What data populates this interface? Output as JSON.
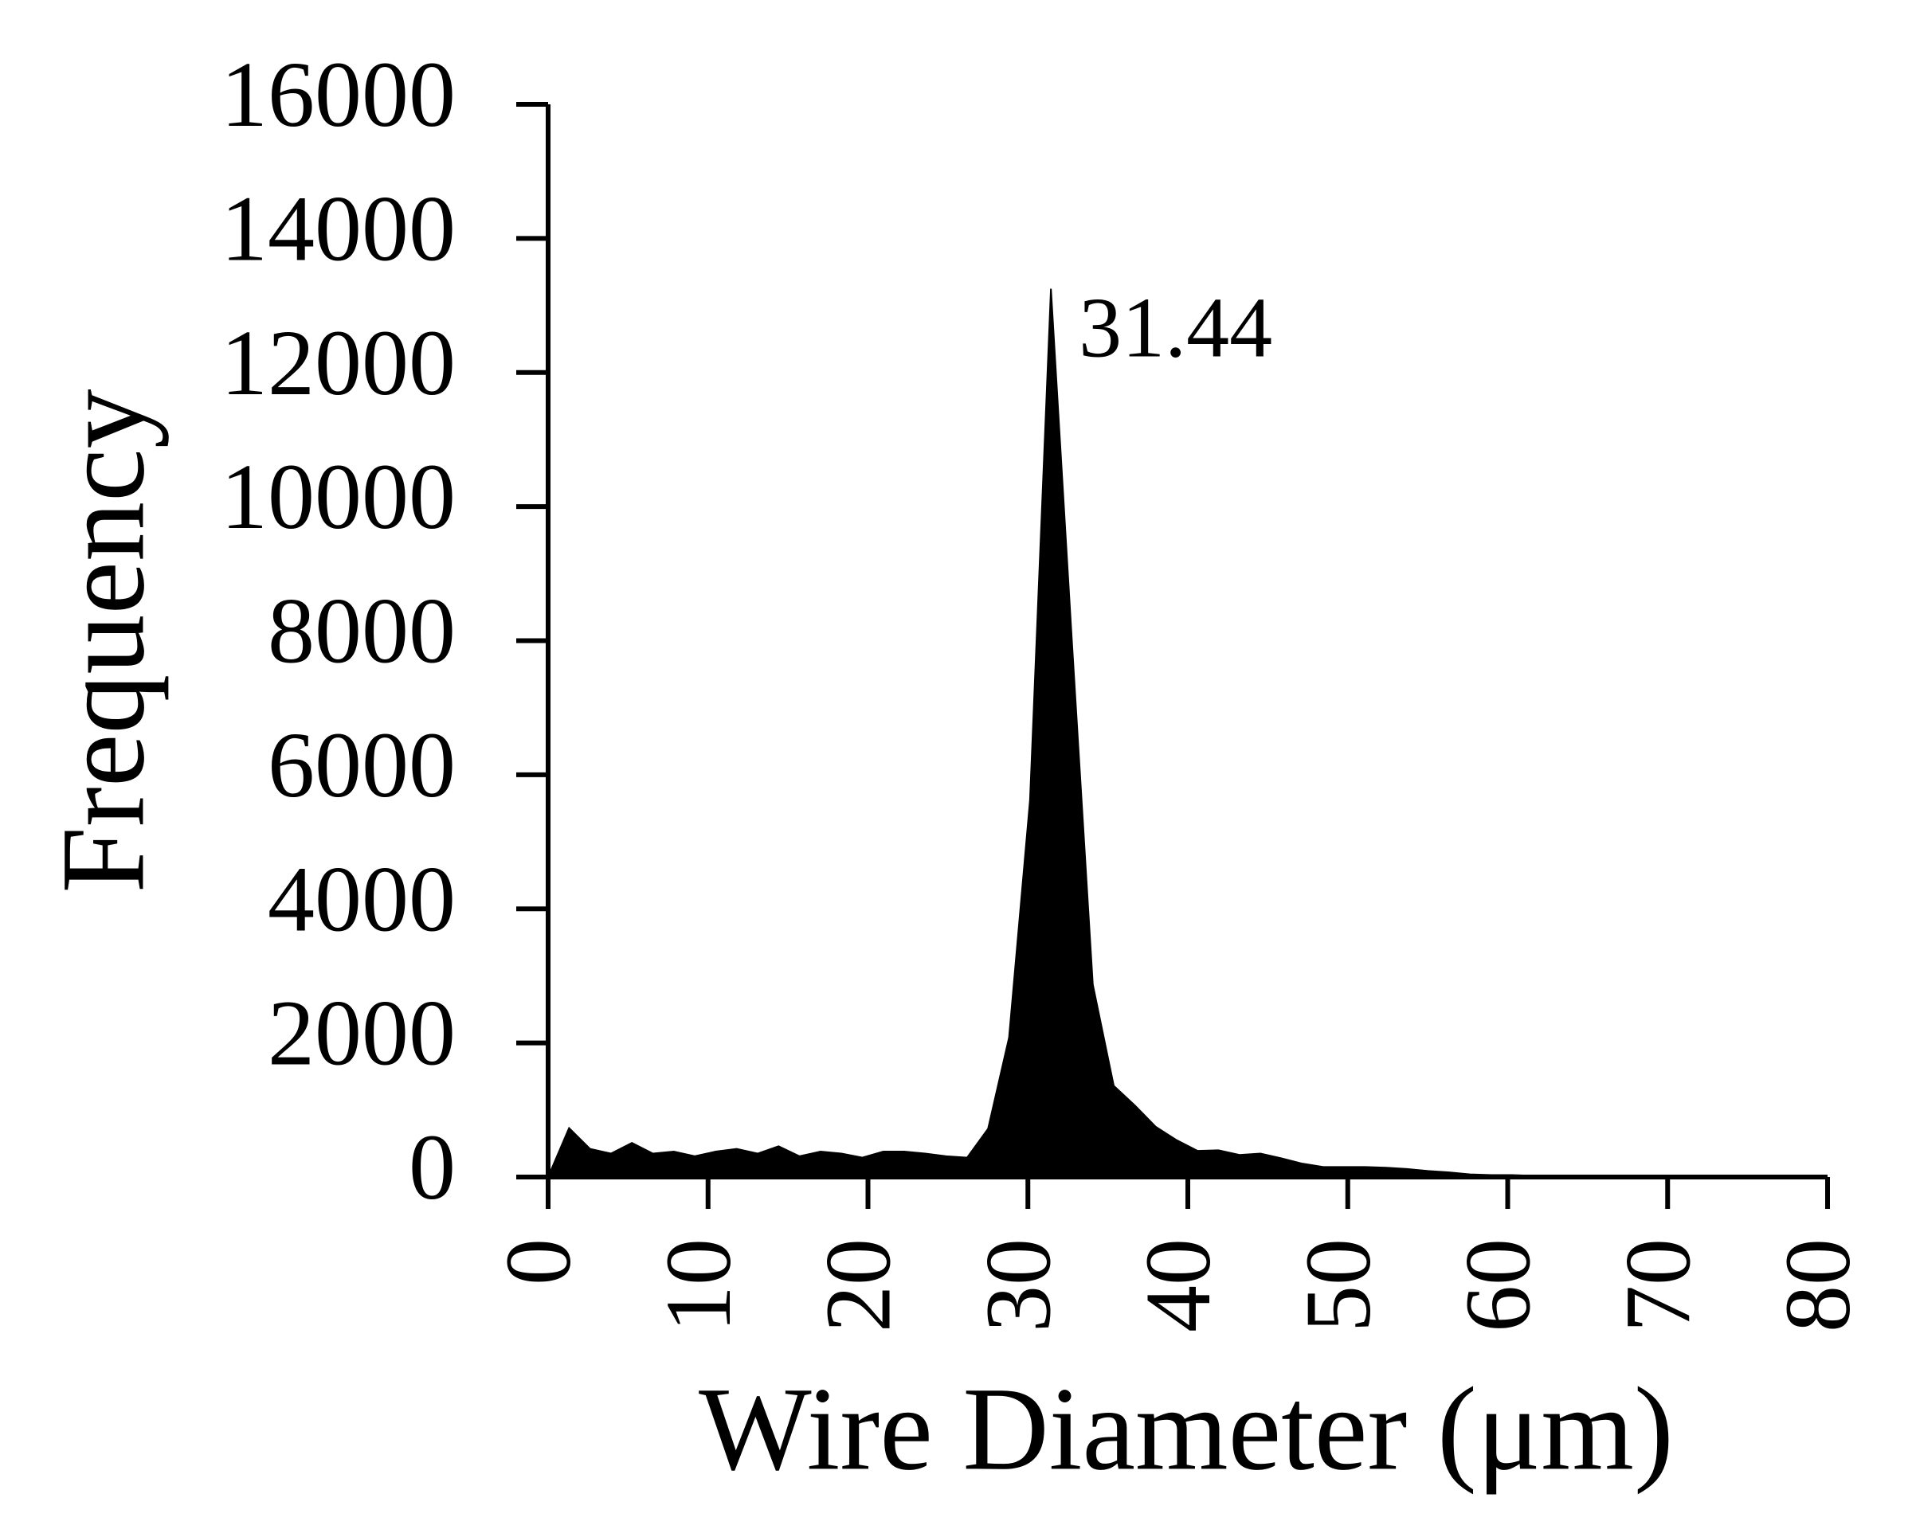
{
  "chart_data": {
    "type": "area",
    "xlabel": "Wire Diameter (μm)",
    "ylabel": "Frequency",
    "annotation": "31.44",
    "color": "#000000",
    "x": [
      0,
      1.31,
      2.62,
      3.93,
      5.24,
      6.55,
      7.86,
      9.17,
      10.48,
      11.79,
      13.1,
      14.41,
      15.72,
      17.03,
      18.34,
      19.65,
      20.96,
      22.27,
      23.58,
      24.89,
      26.2,
      27.51,
      28.82,
      30.13,
      31.44,
      32.75,
      34.06,
      35.37,
      36.68,
      37.99,
      39.3,
      40.61,
      41.92,
      43.23,
      44.54,
      45.85,
      47.16,
      48.47,
      49.78,
      51.09,
      52.4,
      53.71,
      55.02,
      56.33,
      57.64,
      58.95,
      60.26,
      61.57,
      62.88,
      64.19,
      65.5,
      66.81,
      68.12,
      69.43,
      70.74,
      72.05,
      73.36,
      74.67,
      75.98,
      77.29,
      78.6,
      79.91
    ],
    "values": [
      0,
      730,
      420,
      350,
      510,
      350,
      380,
      310,
      380,
      420,
      350,
      460,
      310,
      380,
      350,
      290,
      380,
      380,
      350,
      310,
      290,
      720,
      2080,
      5620,
      13250,
      8000,
      2870,
      1360,
      1070,
      750,
      550,
      390,
      400,
      330,
      350,
      280,
      200,
      150,
      150,
      150,
      140,
      120,
      90,
      70,
      40,
      30,
      30,
      20,
      10,
      10,
      10,
      5,
      5,
      5,
      5,
      5,
      5,
      5,
      5,
      5,
      5,
      5
    ],
    "xlim": [
      0,
      80
    ],
    "xticks": [
      0,
      10,
      20,
      30,
      40,
      50,
      60,
      70,
      80
    ],
    "ylim": [
      0,
      16000
    ],
    "yticks": [
      0,
      2000,
      4000,
      6000,
      8000,
      10000,
      12000,
      14000,
      16000
    ]
  }
}
